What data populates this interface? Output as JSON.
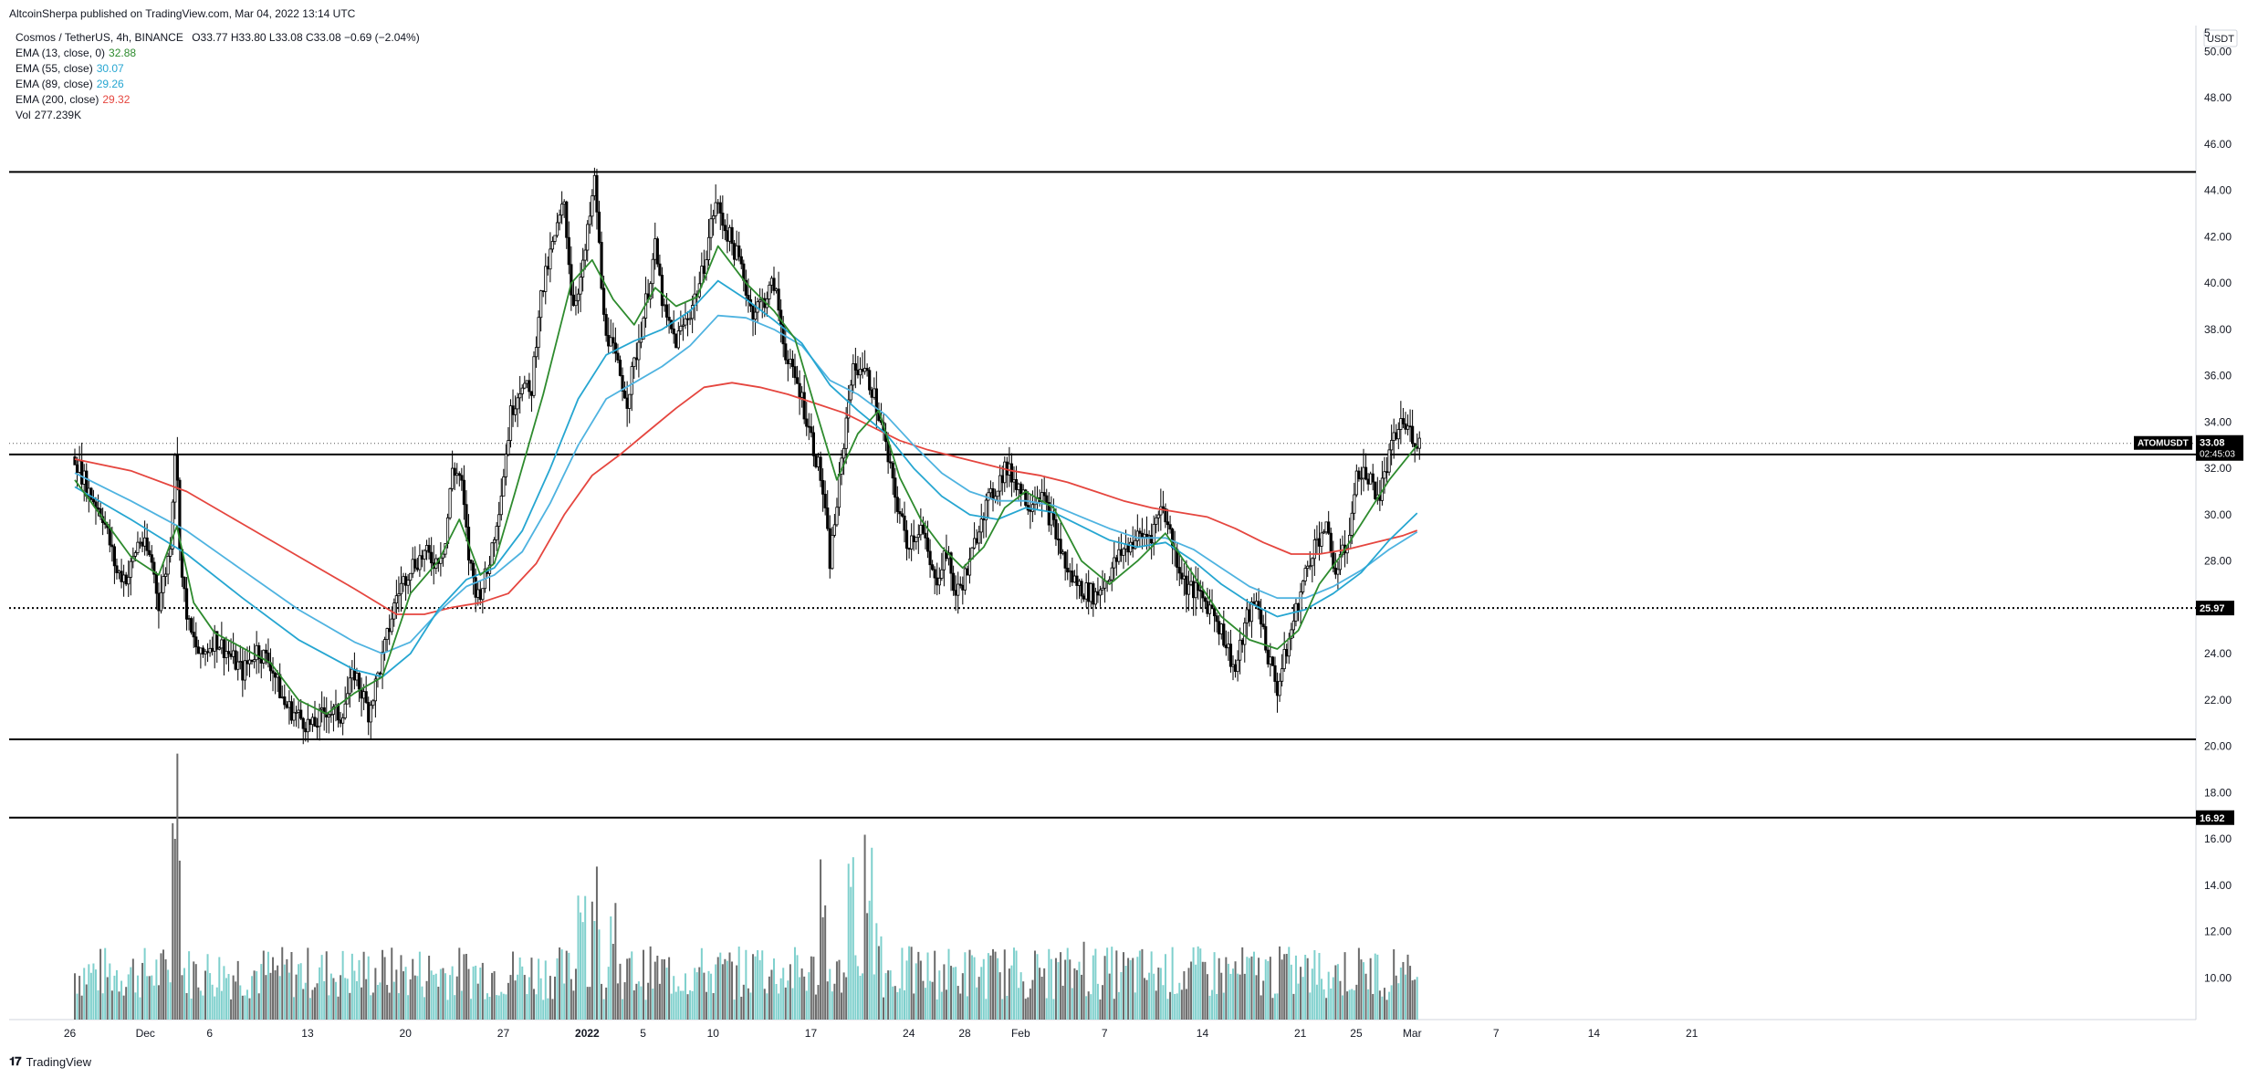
{
  "header": {
    "published": "AltcoinSherpa published on TradingView.com, Mar 04, 2022 13:14 UTC"
  },
  "legend": {
    "symbol_line": "Cosmos / TetherUS, 4h, BINANCE",
    "ohlc": "O33.77  H33.80  L33.08  C33.08  −0.69 (−2.04%)",
    "indicators": [
      {
        "label": "EMA (13, close, 0)",
        "value": "32.88",
        "color": "#2e8b2e"
      },
      {
        "label": "EMA (55, close)",
        "value": "30.07",
        "color": "#26a6d1"
      },
      {
        "label": "EMA (89, close)",
        "value": "29.26",
        "color": "#26a6d1"
      },
      {
        "label": "EMA (200, close)",
        "value": "29.32",
        "color": "#e5463f"
      },
      {
        "label": "Vol",
        "value": "277.239K",
        "color": "#131722"
      }
    ]
  },
  "footer": {
    "logo": "TradingView"
  },
  "chart_data": {
    "type": "candlestick",
    "symbol": "ATOMUSDT",
    "currency": "USDT",
    "y_ticks": [
      "10.00",
      "12.00",
      "14.00",
      "16.00",
      "18.00",
      "20.00",
      "22.00",
      "24.00",
      "26.00",
      "28.00",
      "30.00",
      "32.00",
      "34.00",
      "36.00",
      "38.00",
      "40.00",
      "42.00",
      "44.00",
      "46.00",
      "48.00",
      "50.00"
    ],
    "y_top_tick": "5",
    "ylim": [
      8.2,
      51.2
    ],
    "x_ticks": [
      {
        "label": "26",
        "x": 0.1
      },
      {
        "label": "Dec",
        "x": 5.5
      },
      {
        "label": "6",
        "x": 10.1
      },
      {
        "label": "13",
        "x": 17.1
      },
      {
        "label": "20",
        "x": 24.1
      },
      {
        "label": "27",
        "x": 31.1
      },
      {
        "label": "2022",
        "x": 37.1
      },
      {
        "label": "5",
        "x": 41.1
      },
      {
        "label": "10",
        "x": 46.1
      },
      {
        "label": "17",
        "x": 53.1
      },
      {
        "label": "24",
        "x": 60.1
      },
      {
        "label": "28",
        "x": 64.1
      },
      {
        "label": "Feb",
        "x": 68.1
      },
      {
        "label": "7",
        "x": 74.1
      },
      {
        "label": "14",
        "x": 81.1
      },
      {
        "label": "21",
        "x": 88.1
      },
      {
        "label": "25",
        "x": 92.1
      },
      {
        "label": "Mar",
        "x": 96.1
      },
      {
        "label": "7",
        "x": 102.1
      },
      {
        "label": "14",
        "x": 109.1
      },
      {
        "label": "21",
        "x": 116.1
      }
    ],
    "x_unit_note": "days since Nov 26, 2021",
    "last_price": {
      "label": "ATOMUSDT",
      "value": "33.08",
      "countdown": "02:45:03"
    },
    "horizontal_lines": [
      {
        "value": 44.8,
        "style": "solid"
      },
      {
        "value": 32.6,
        "style": "solid"
      },
      {
        "value": 25.97,
        "style": "dotted",
        "label": "25.97"
      },
      {
        "value": 20.3,
        "style": "solid"
      },
      {
        "value": 16.92,
        "style": "solid",
        "label": "16.92"
      }
    ],
    "price_path": [
      [
        0,
        32.5
      ],
      [
        1,
        31.0
      ],
      [
        2,
        30.0
      ],
      [
        3,
        27.5
      ],
      [
        3.8,
        27.3
      ],
      [
        4.6,
        29.0
      ],
      [
        5.5,
        28.0
      ],
      [
        6.0,
        26.2
      ],
      [
        6.8,
        28.5
      ],
      [
        7.2,
        33.2
      ],
      [
        7.6,
        27.5
      ],
      [
        8.2,
        25.0
      ],
      [
        9.0,
        23.8
      ],
      [
        10.0,
        24.7
      ],
      [
        11.0,
        24.0
      ],
      [
        12.0,
        23.2
      ],
      [
        13.0,
        24.2
      ],
      [
        14.0,
        23.6
      ],
      [
        15.0,
        21.8
      ],
      [
        16.0,
        21.3
      ],
      [
        17.0,
        20.8
      ],
      [
        18.0,
        21.6
      ],
      [
        19.0,
        21.3
      ],
      [
        20.0,
        23.2
      ],
      [
        21.0,
        21.5
      ],
      [
        22.0,
        23.8
      ],
      [
        23.0,
        26.5
      ],
      [
        24.0,
        27.8
      ],
      [
        25.0,
        28.3
      ],
      [
        25.8,
        28.0
      ],
      [
        26.5,
        28.8
      ],
      [
        27.0,
        32.0
      ],
      [
        27.6,
        31.6
      ],
      [
        28.2,
        28.0
      ],
      [
        28.8,
        26.5
      ],
      [
        29.5,
        27.5
      ],
      [
        30.5,
        31.0
      ],
      [
        31.2,
        34.5
      ],
      [
        32.0,
        35.8
      ],
      [
        32.6,
        35.0
      ],
      [
        33.2,
        39.0
      ],
      [
        34.0,
        41.2
      ],
      [
        35.0,
        43.5
      ],
      [
        35.6,
        39.0
      ],
      [
        36.3,
        40.5
      ],
      [
        37.2,
        44.5
      ],
      [
        37.8,
        38.5
      ],
      [
        38.5,
        37.0
      ],
      [
        39.5,
        35.0
      ],
      [
        40.5,
        38.0
      ],
      [
        41.5,
        41.5
      ],
      [
        42.2,
        38.5
      ],
      [
        43.0,
        37.5
      ],
      [
        44.0,
        38.8
      ],
      [
        44.8,
        40.2
      ],
      [
        45.8,
        43.5
      ],
      [
        46.8,
        42.0
      ],
      [
        47.6,
        40.8
      ],
      [
        48.4,
        38.8
      ],
      [
        49.2,
        39.2
      ],
      [
        50.0,
        40.0
      ],
      [
        51.0,
        36.5
      ],
      [
        51.8,
        35.5
      ],
      [
        52.6,
        33.5
      ],
      [
        53.4,
        31.5
      ],
      [
        54.0,
        28.0
      ],
      [
        54.8,
        32.0
      ],
      [
        55.5,
        36.0
      ],
      [
        56.2,
        36.5
      ],
      [
        57.0,
        35.5
      ],
      [
        57.8,
        33.5
      ],
      [
        58.6,
        31.0
      ],
      [
        59.5,
        28.8
      ],
      [
        60.5,
        29.5
      ],
      [
        61.5,
        27.0
      ],
      [
        62.3,
        28.5
      ],
      [
        63.0,
        26.5
      ],
      [
        64.0,
        27.8
      ],
      [
        64.8,
        30.0
      ],
      [
        65.6,
        30.8
      ],
      [
        66.5,
        32.0
      ],
      [
        67.3,
        31.5
      ],
      [
        68.2,
        30.5
      ],
      [
        69.0,
        31.0
      ],
      [
        70.0,
        29.5
      ],
      [
        71.0,
        27.5
      ],
      [
        72.0,
        26.8
      ],
      [
        73.0,
        26.5
      ],
      [
        74.0,
        27.5
      ],
      [
        75.0,
        28.5
      ],
      [
        76.0,
        29.0
      ],
      [
        77.0,
        29.2
      ],
      [
        77.8,
        30.5
      ],
      [
        78.6,
        28.5
      ],
      [
        79.4,
        27.0
      ],
      [
        80.5,
        26.5
      ],
      [
        81.5,
        25.8
      ],
      [
        82.3,
        24.5
      ],
      [
        83.0,
        23.2
      ],
      [
        83.8,
        25.5
      ],
      [
        84.6,
        26.3
      ],
      [
        85.3,
        24.0
      ],
      [
        86.0,
        22.5
      ],
      [
        86.8,
        24.5
      ],
      [
        87.6,
        26.5
      ],
      [
        88.5,
        28.5
      ],
      [
        89.4,
        29.5
      ],
      [
        90.2,
        27.5
      ],
      [
        91.0,
        28.8
      ],
      [
        91.8,
        32.0
      ],
      [
        92.6,
        31.5
      ],
      [
        93.3,
        30.8
      ],
      [
        94.0,
        32.5
      ],
      [
        94.8,
        34.0
      ],
      [
        95.5,
        33.6
      ],
      [
        96.1,
        33.08
      ]
    ],
    "ema13": [
      [
        0,
        31.5
      ],
      [
        4,
        28.2
      ],
      [
        6,
        27.4
      ],
      [
        7.3,
        29.5
      ],
      [
        8.5,
        26.2
      ],
      [
        10,
        24.9
      ],
      [
        14,
        23.6
      ],
      [
        16,
        22.0
      ],
      [
        18,
        21.4
      ],
      [
        20,
        22.3
      ],
      [
        22,
        23.0
      ],
      [
        24,
        26.6
      ],
      [
        26,
        28.0
      ],
      [
        27.5,
        29.8
      ],
      [
        29,
        27.4
      ],
      [
        30,
        27.9
      ],
      [
        31.5,
        31.0
      ],
      [
        33.5,
        35.2
      ],
      [
        35.5,
        40.0
      ],
      [
        37,
        41.0
      ],
      [
        38.5,
        39.3
      ],
      [
        40,
        38.2
      ],
      [
        41.5,
        39.8
      ],
      [
        43,
        39.0
      ],
      [
        44.5,
        39.4
      ],
      [
        46,
        41.6
      ],
      [
        48,
        40.0
      ],
      [
        50,
        38.8
      ],
      [
        51.5,
        37.6
      ],
      [
        53,
        34.5
      ],
      [
        54.5,
        31.5
      ],
      [
        56,
        33.5
      ],
      [
        57.5,
        34.5
      ],
      [
        59,
        31.6
      ],
      [
        60.5,
        29.8
      ],
      [
        62,
        28.6
      ],
      [
        63.5,
        27.7
      ],
      [
        65,
        28.6
      ],
      [
        66.5,
        30.3
      ],
      [
        68,
        31.0
      ],
      [
        70,
        30.3
      ],
      [
        72,
        28.0
      ],
      [
        74,
        27.0
      ],
      [
        76,
        28.0
      ],
      [
        78,
        29.2
      ],
      [
        80,
        27.4
      ],
      [
        82,
        25.6
      ],
      [
        84,
        24.6
      ],
      [
        86,
        24.2
      ],
      [
        87.5,
        25.0
      ],
      [
        89,
        27.0
      ],
      [
        90.5,
        28.2
      ],
      [
        92,
        29.6
      ],
      [
        94,
        31.5
      ],
      [
        96,
        33.0
      ]
    ],
    "ema55": [
      [
        0,
        31.2
      ],
      [
        4,
        29.8
      ],
      [
        8,
        28.3
      ],
      [
        12,
        26.4
      ],
      [
        16,
        24.6
      ],
      [
        20,
        23.3
      ],
      [
        22,
        23.0
      ],
      [
        24,
        24.0
      ],
      [
        26,
        25.9
      ],
      [
        28,
        27.2
      ],
      [
        30,
        27.7
      ],
      [
        32,
        29.3
      ],
      [
        34,
        32.0
      ],
      [
        36,
        35.0
      ],
      [
        38,
        36.9
      ],
      [
        40,
        37.5
      ],
      [
        42,
        38.0
      ],
      [
        44,
        38.8
      ],
      [
        46,
        40.1
      ],
      [
        48,
        39.3
      ],
      [
        50,
        38.4
      ],
      [
        52,
        37.4
      ],
      [
        54,
        35.6
      ],
      [
        56,
        34.5
      ],
      [
        58,
        33.5
      ],
      [
        60,
        32.0
      ],
      [
        62,
        30.8
      ],
      [
        64,
        30.0
      ],
      [
        66,
        29.8
      ],
      [
        68,
        30.3
      ],
      [
        70,
        30.1
      ],
      [
        72,
        29.5
      ],
      [
        74,
        28.9
      ],
      [
        76,
        28.6
      ],
      [
        78,
        28.8
      ],
      [
        80,
        28.0
      ],
      [
        82,
        27.0
      ],
      [
        84,
        26.2
      ],
      [
        86,
        25.6
      ],
      [
        88,
        25.9
      ],
      [
        90,
        26.6
      ],
      [
        92,
        27.5
      ],
      [
        94,
        28.9
      ],
      [
        96,
        30.07
      ]
    ],
    "ema89": [
      [
        0,
        31.8
      ],
      [
        4,
        30.6
      ],
      [
        8,
        29.3
      ],
      [
        12,
        27.6
      ],
      [
        16,
        25.9
      ],
      [
        20,
        24.5
      ],
      [
        22,
        24.0
      ],
      [
        24,
        24.5
      ],
      [
        26,
        25.8
      ],
      [
        28,
        26.9
      ],
      [
        30,
        27.4
      ],
      [
        32,
        28.4
      ],
      [
        34,
        30.5
      ],
      [
        36,
        33.0
      ],
      [
        38,
        35.0
      ],
      [
        40,
        35.7
      ],
      [
        42,
        36.4
      ],
      [
        44,
        37.3
      ],
      [
        46,
        38.6
      ],
      [
        48,
        38.5
      ],
      [
        50,
        38.0
      ],
      [
        52,
        37.3
      ],
      [
        54,
        35.8
      ],
      [
        56,
        35.2
      ],
      [
        58,
        34.3
      ],
      [
        60,
        33.0
      ],
      [
        62,
        31.8
      ],
      [
        64,
        31.0
      ],
      [
        66,
        30.6
      ],
      [
        68,
        30.6
      ],
      [
        70,
        30.4
      ],
      [
        72,
        29.9
      ],
      [
        74,
        29.4
      ],
      [
        76,
        29.0
      ],
      [
        78,
        29.0
      ],
      [
        80,
        28.5
      ],
      [
        82,
        27.7
      ],
      [
        84,
        26.9
      ],
      [
        86,
        26.4
      ],
      [
        88,
        26.4
      ],
      [
        90,
        26.9
      ],
      [
        92,
        27.6
      ],
      [
        94,
        28.5
      ],
      [
        96,
        29.26
      ]
    ],
    "ema200": [
      [
        0,
        32.4
      ],
      [
        4,
        31.9
      ],
      [
        8,
        31.0
      ],
      [
        12,
        29.6
      ],
      [
        16,
        28.2
      ],
      [
        20,
        26.8
      ],
      [
        23,
        25.7
      ],
      [
        25,
        25.7
      ],
      [
        27,
        26.0
      ],
      [
        29,
        26.2
      ],
      [
        31,
        26.6
      ],
      [
        33,
        27.9
      ],
      [
        35,
        30.0
      ],
      [
        37,
        31.7
      ],
      [
        39,
        32.6
      ],
      [
        41,
        33.6
      ],
      [
        43,
        34.6
      ],
      [
        45,
        35.5
      ],
      [
        47,
        35.7
      ],
      [
        49,
        35.5
      ],
      [
        51,
        35.2
      ],
      [
        53,
        34.8
      ],
      [
        55,
        34.4
      ],
      [
        57,
        33.8
      ],
      [
        59,
        33.2
      ],
      [
        61,
        32.8
      ],
      [
        63,
        32.5
      ],
      [
        65,
        32.2
      ],
      [
        67,
        31.9
      ],
      [
        69,
        31.7
      ],
      [
        71,
        31.4
      ],
      [
        73,
        31.0
      ],
      [
        75,
        30.6
      ],
      [
        77,
        30.3
      ],
      [
        79,
        30.1
      ],
      [
        81,
        29.9
      ],
      [
        83,
        29.4
      ],
      [
        85,
        28.8
      ],
      [
        87,
        28.3
      ],
      [
        89,
        28.3
      ],
      [
        91,
        28.5
      ],
      [
        93,
        28.8
      ],
      [
        95,
        29.1
      ],
      [
        96,
        29.32
      ]
    ],
    "volume_spikes": [
      [
        7.3,
        1.0
      ],
      [
        36.3,
        0.55
      ],
      [
        37.2,
        0.6
      ],
      [
        38.5,
        0.5
      ],
      [
        53.5,
        0.6
      ],
      [
        55.5,
        0.62
      ],
      [
        56.8,
        0.7
      ],
      [
        57.5,
        0.4
      ],
      [
        49,
        0.3
      ],
      [
        72,
        0.3
      ],
      [
        86.5,
        0.25
      ],
      [
        95,
        0.25
      ]
    ]
  }
}
